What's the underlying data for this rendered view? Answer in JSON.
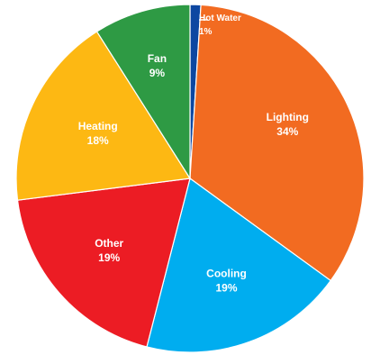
{
  "chart_data": {
    "type": "pie",
    "slices": [
      {
        "label": "Hot Water",
        "value": 1,
        "value_label": "1%",
        "color": "#0d47a1"
      },
      {
        "label": "Lighting",
        "value": 34,
        "value_label": "34%",
        "color": "#f26b21"
      },
      {
        "label": "Cooling",
        "value": 19,
        "value_label": "19%",
        "color": "#00adef"
      },
      {
        "label": "Other",
        "value": 19,
        "value_label": "19%",
        "color": "#ec1c24"
      },
      {
        "label": "Heating",
        "value": 18,
        "value_label": "18%",
        "color": "#fdb813"
      },
      {
        "label": "Fan",
        "value": 9,
        "value_label": "9%",
        "color": "#2e9a44"
      }
    ],
    "start_angle_deg": 0,
    "direction": "clockwise",
    "label_color": "#ffffff",
    "outline_color": "#ffffff"
  }
}
